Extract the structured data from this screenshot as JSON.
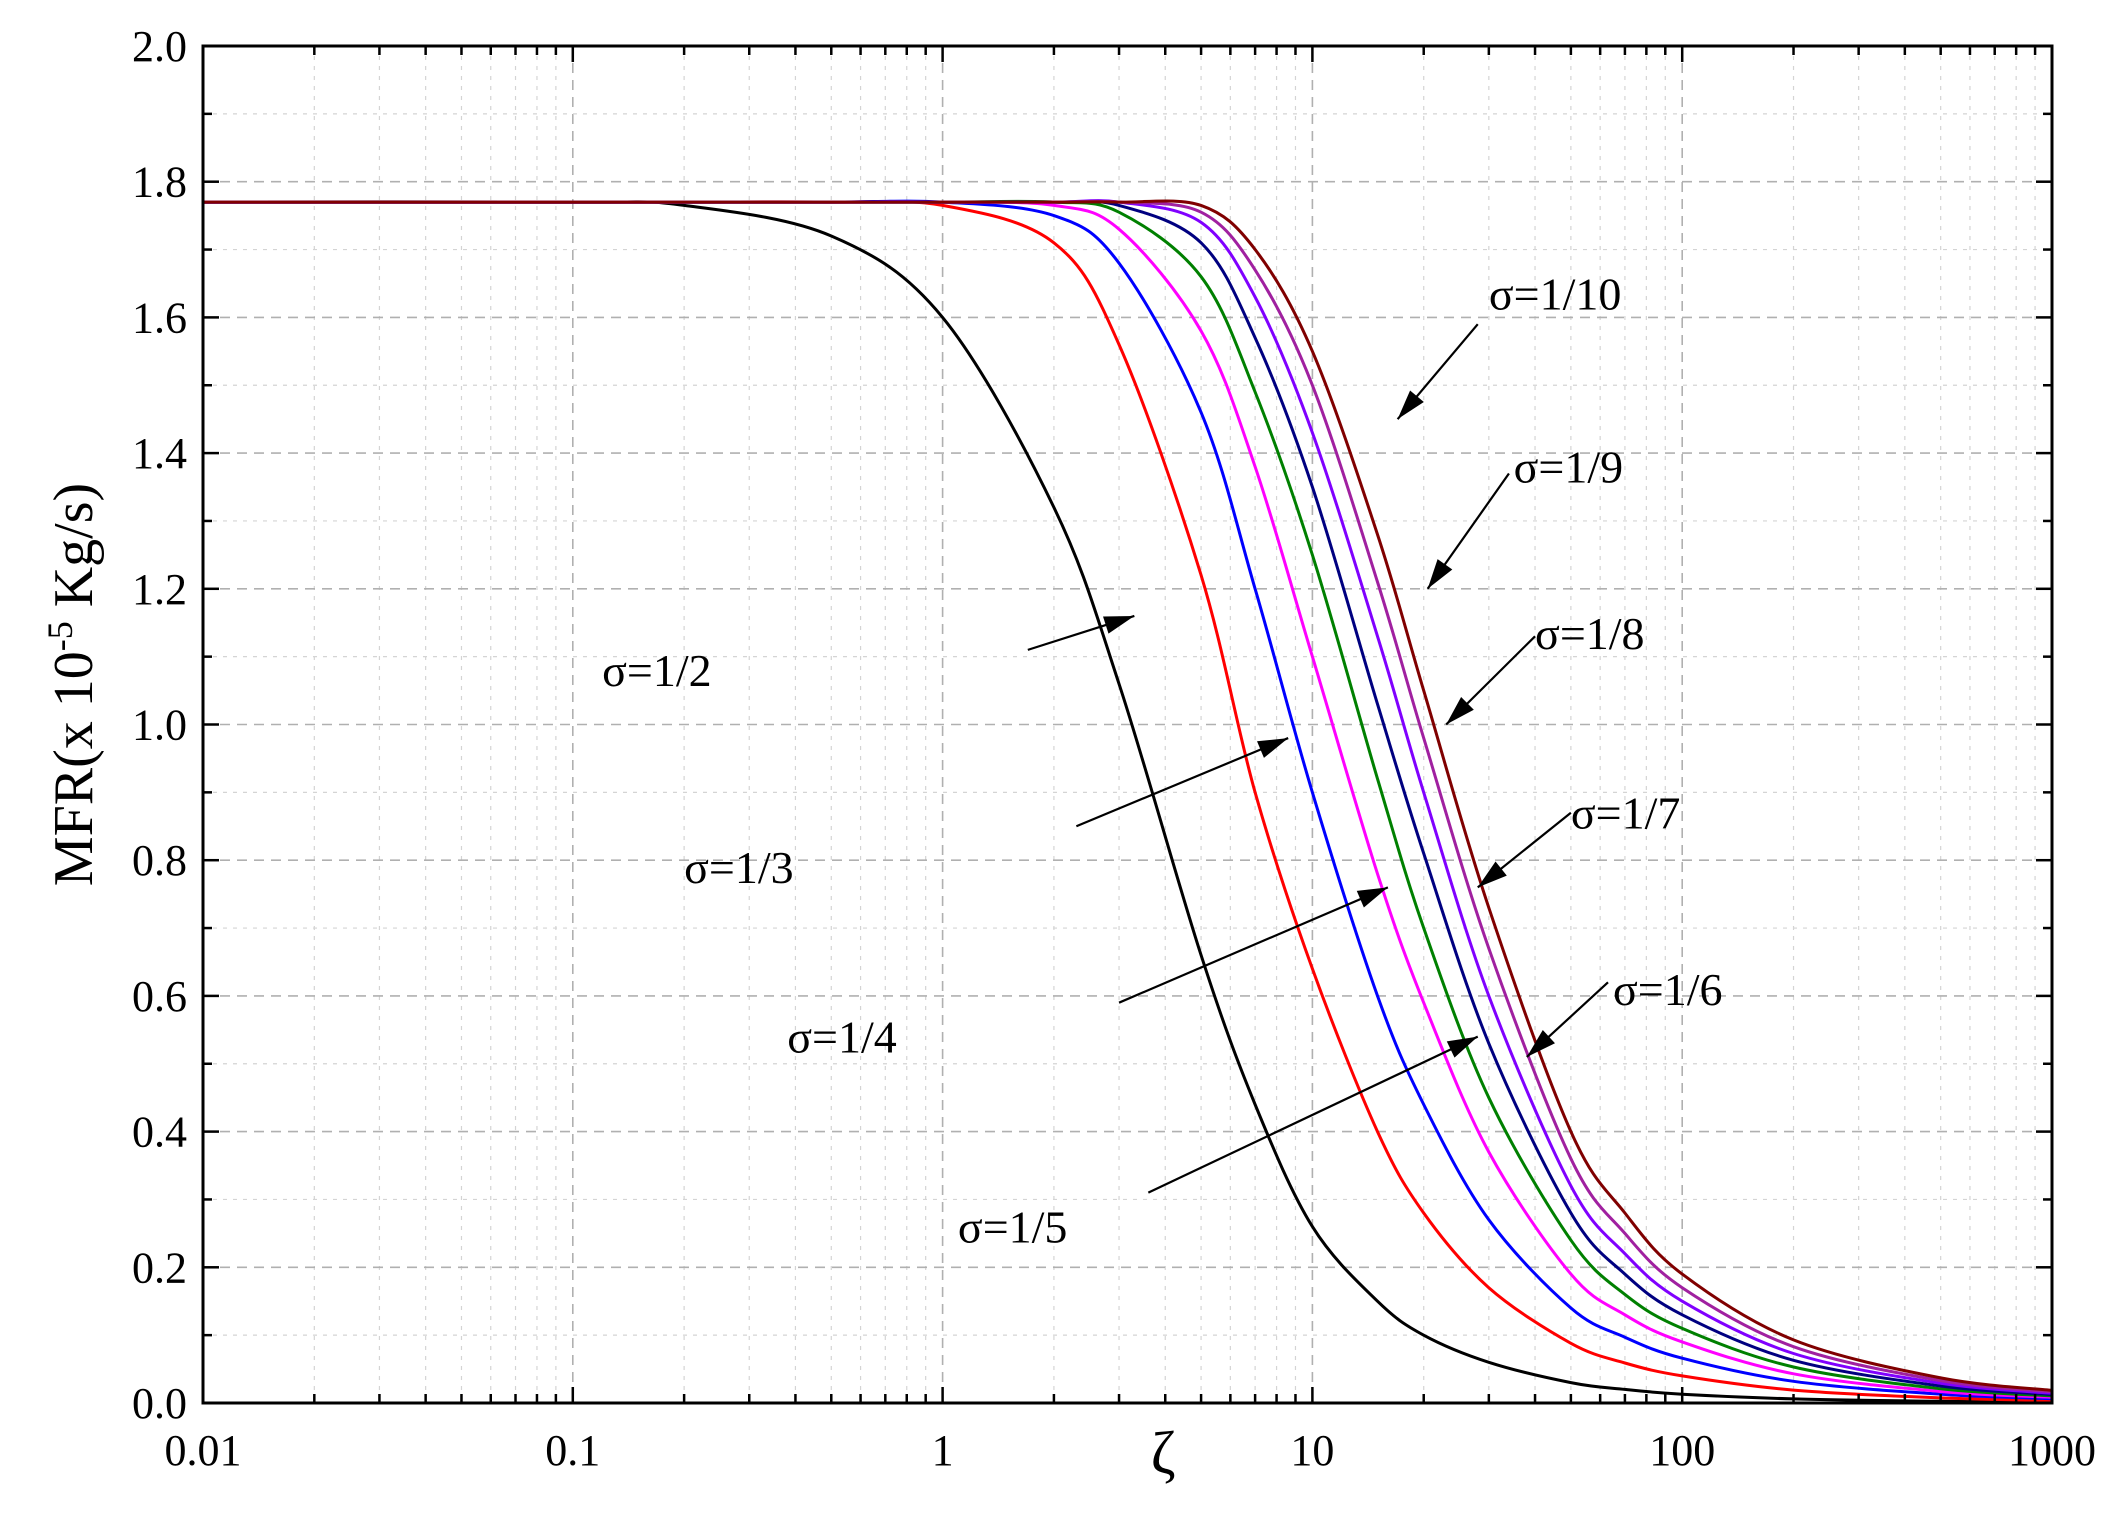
{
  "chart_data": {
    "type": "line",
    "title": "",
    "xlabel": "ζ",
    "ylabel": "MFR(x 10",
    "ylabel_exponent": "-5",
    "ylabel_units": " Kg/s)",
    "xscale": "log",
    "xlim": [
      0.01,
      1000
    ],
    "ylim": [
      0.0,
      2.0
    ],
    "grid": true,
    "legend": "none",
    "x_ticks": [
      "0.01",
      "0.1",
      "1",
      "10",
      "100",
      "1000"
    ],
    "y_ticks": [
      "0.0",
      "0.2",
      "0.4",
      "0.6",
      "0.8",
      "1.0",
      "1.2",
      "1.4",
      "1.6",
      "1.8",
      "2.0"
    ],
    "x": [
      0.01,
      0.1,
      0.2,
      0.5,
      1,
      2,
      3,
      5,
      7,
      10,
      15,
      20,
      30,
      50,
      70,
      100,
      200,
      500,
      1000
    ],
    "series": [
      {
        "color": "#000000",
        "label": "σ=1/2",
        "values": [
          1.77,
          1.77,
          1.765,
          1.72,
          1.6,
          1.32,
          1.06,
          0.66,
          0.44,
          0.26,
          0.15,
          0.1,
          0.06,
          0.03,
          0.02,
          0.013,
          0.006,
          0.0025,
          0.0012
        ]
      },
      {
        "color": "#ff0000",
        "label": "σ=1/3",
        "values": [
          1.77,
          1.77,
          1.77,
          1.77,
          1.765,
          1.71,
          1.56,
          1.22,
          0.9,
          0.64,
          0.4,
          0.28,
          0.17,
          0.088,
          0.059,
          0.04,
          0.019,
          0.0075,
          0.0037
        ]
      },
      {
        "color": "#0000ff",
        "label": "σ=1/4",
        "values": [
          1.77,
          1.77,
          1.77,
          1.77,
          1.77,
          1.75,
          1.68,
          1.46,
          1.2,
          0.9,
          0.6,
          0.44,
          0.27,
          0.14,
          0.097,
          0.066,
          0.032,
          0.013,
          0.0063
        ]
      },
      {
        "color": "#ff00ff",
        "label": "σ=1/5",
        "values": [
          1.77,
          1.77,
          1.77,
          1.77,
          1.77,
          1.765,
          1.73,
          1.58,
          1.38,
          1.1,
          0.78,
          0.59,
          0.37,
          0.19,
          0.13,
          0.09,
          0.043,
          0.017,
          0.0085
        ]
      },
      {
        "color": "#008000",
        "label": "σ=1/6",
        "values": [
          1.77,
          1.77,
          1.77,
          1.77,
          1.77,
          1.77,
          1.755,
          1.66,
          1.49,
          1.25,
          0.92,
          0.7,
          0.45,
          0.24,
          0.16,
          0.11,
          0.053,
          0.021,
          0.0105
        ]
      },
      {
        "color": "#000080",
        "label": "σ=1/7",
        "values": [
          1.77,
          1.77,
          1.77,
          1.77,
          1.77,
          1.77,
          1.765,
          1.71,
          1.57,
          1.35,
          1.03,
          0.81,
          0.53,
          0.28,
          0.19,
          0.13,
          0.063,
          0.025,
          0.0125
        ]
      },
      {
        "color": "#8000ff",
        "label": "σ=1/8",
        "values": [
          1.77,
          1.77,
          1.77,
          1.77,
          1.77,
          1.77,
          1.77,
          1.74,
          1.63,
          1.43,
          1.13,
          0.9,
          0.6,
          0.32,
          0.22,
          0.15,
          0.073,
          0.029,
          0.0145
        ]
      },
      {
        "color": "#a020a0",
        "label": "σ=1/9",
        "values": [
          1.77,
          1.77,
          1.77,
          1.77,
          1.77,
          1.77,
          1.77,
          1.755,
          1.67,
          1.5,
          1.21,
          0.98,
          0.67,
          0.36,
          0.25,
          0.17,
          0.083,
          0.033,
          0.0165
        ]
      },
      {
        "color": "#800000",
        "label": "σ=1/10",
        "values": [
          1.77,
          1.77,
          1.77,
          1.77,
          1.77,
          1.77,
          1.77,
          1.765,
          1.7,
          1.55,
          1.28,
          1.05,
          0.73,
          0.4,
          0.28,
          0.19,
          0.093,
          0.037,
          0.0185
        ]
      }
    ],
    "annotations": [
      {
        "text": "σ=1/10",
        "text_x": 30,
        "text_y": 1.635,
        "line_from_x": 28,
        "line_from_y": 1.59,
        "arrow_to_x": 17,
        "arrow_to_y": 1.45
      },
      {
        "text": "σ=1/9",
        "text_x": 35,
        "text_y": 1.38,
        "line_from_x": 34,
        "line_from_y": 1.37,
        "arrow_to_x": 20.5,
        "arrow_to_y": 1.2
      },
      {
        "text": "σ=1/8",
        "text_x": 40,
        "text_y": 1.135,
        "line_from_x": 40,
        "line_from_y": 1.13,
        "arrow_to_x": 23,
        "arrow_to_y": 1.0
      },
      {
        "text": "σ=1/7",
        "text_x": 50,
        "text_y": 0.87,
        "line_from_x": 50,
        "line_from_y": 0.87,
        "arrow_to_x": 28,
        "arrow_to_y": 0.76
      },
      {
        "text": "σ=1/6",
        "text_x": 65,
        "text_y": 0.61,
        "line_from_x": 63,
        "line_from_y": 0.62,
        "arrow_to_x": 38,
        "arrow_to_y": 0.51
      },
      {
        "text": "σ=1/5",
        "text_x": 1.1,
        "text_y": 0.26,
        "line_from_x": 3.6,
        "line_from_y": 0.31,
        "arrow_to_x": 28,
        "arrow_to_y": 0.54
      },
      {
        "text": "σ=1/4",
        "text_x": 0.38,
        "text_y": 0.54,
        "line_from_x": 3.0,
        "line_from_y": 0.59,
        "arrow_to_x": 16,
        "arrow_to_y": 0.76
      },
      {
        "text": "σ=1/3",
        "text_x": 0.2,
        "text_y": 0.79,
        "line_from_x": 2.3,
        "line_from_y": 0.85,
        "arrow_to_x": 8.6,
        "arrow_to_y": 0.98
      },
      {
        "text": "σ=1/2",
        "text_x": 0.12,
        "text_y": 1.08,
        "line_from_x": 1.7,
        "line_from_y": 1.11,
        "arrow_to_x": 3.3,
        "arrow_to_y": 1.16
      }
    ]
  }
}
